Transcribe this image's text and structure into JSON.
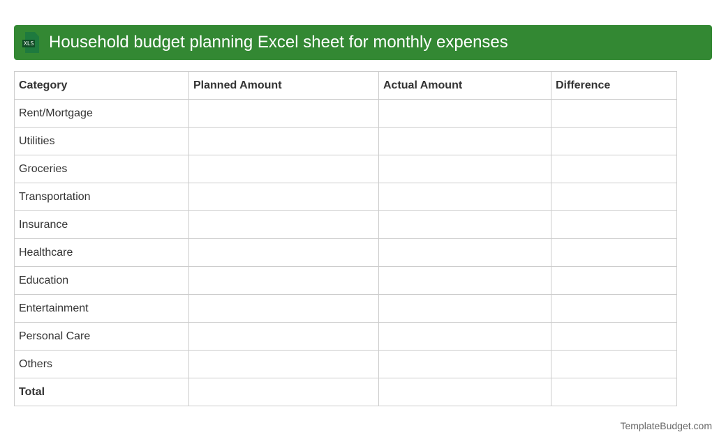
{
  "title": "Household budget planning Excel sheet for monthly expenses",
  "icon": {
    "name": "xls-file-icon",
    "label": "XLS"
  },
  "table": {
    "headers": [
      "Category",
      "Planned Amount",
      "Actual Amount",
      "Difference"
    ],
    "rows": [
      "Rent/Mortgage",
      "Utilities",
      "Groceries",
      "Transportation",
      "Insurance",
      "Healthcare",
      "Education",
      "Entertainment",
      "Personal Care",
      "Others",
      "Total"
    ]
  },
  "footer": "TemplateBudget.com",
  "colors": {
    "header": "#338833"
  }
}
